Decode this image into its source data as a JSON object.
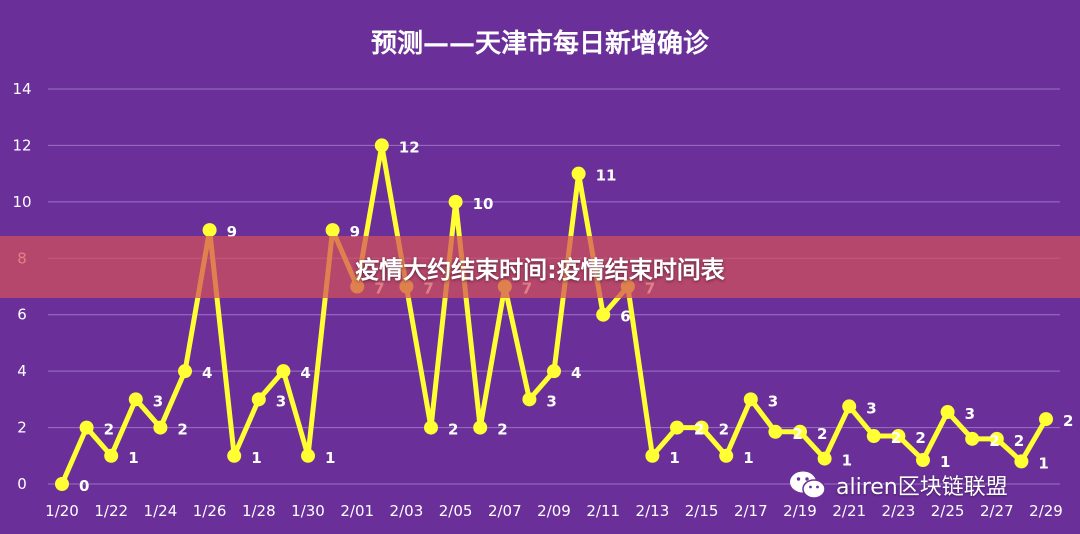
{
  "chart_data": {
    "type": "line",
    "title": "预测——天津市每日新增确诊",
    "x": [
      "1/20",
      "1/21",
      "1/22",
      "1/23",
      "1/24",
      "1/25",
      "1/26",
      "1/27",
      "1/28",
      "1/29",
      "1/30",
      "1/31",
      "2/01",
      "2/02",
      "2/03",
      "2/04",
      "2/05",
      "2/06",
      "2/07",
      "2/08",
      "2/09",
      "2/10",
      "2/11",
      "2/12",
      "2/13",
      "2/14",
      "2/15",
      "2/16",
      "2/17",
      "2/18",
      "2/19",
      "2/20",
      "2/21",
      "2/22",
      "2/23",
      "2/24",
      "2/25",
      "2/26",
      "2/27",
      "2/28",
      "2/29"
    ],
    "values": [
      0,
      2,
      1,
      3,
      2,
      4,
      9,
      1,
      3,
      4,
      1,
      9,
      7,
      12,
      7,
      2,
      10,
      2,
      7,
      3,
      4,
      11,
      6,
      7,
      1,
      2,
      2,
      1,
      3,
      2,
      2,
      1,
      3,
      2,
      2,
      1,
      3,
      2,
      2,
      1,
      2
    ],
    "plotted": [
      0,
      2,
      1,
      3,
      2,
      4,
      9,
      1,
      3,
      4,
      1,
      9,
      7,
      12,
      7,
      2,
      10,
      2,
      7,
      3,
      4,
      11,
      6,
      7,
      1,
      2,
      2,
      1,
      3,
      1.85,
      1.85,
      0.9,
      2.75,
      1.7,
      1.7,
      0.85,
      2.55,
      1.6,
      1.6,
      0.8,
      2.3
    ],
    "xtick_labels": [
      "1/20",
      "1/22",
      "1/24",
      "1/26",
      "1/28",
      "1/30",
      "2/01",
      "2/03",
      "2/05",
      "2/07",
      "2/09",
      "2/11",
      "2/13",
      "2/15",
      "2/17",
      "2/19",
      "2/21",
      "2/23",
      "2/25",
      "2/27",
      "2/29"
    ],
    "yticks": [
      0,
      2,
      4,
      6,
      8,
      10,
      12,
      14
    ],
    "ylim": [
      0,
      14
    ],
    "grid": true,
    "legend": "none",
    "colors": {
      "background": "#6b2f9a",
      "line": "#ffff33",
      "grid": "#9a72c4"
    }
  },
  "overlay": {
    "banner_text": "疫情大约结束时间:疫情结束时间表",
    "watermark_text": "aliren区块链联盟"
  }
}
